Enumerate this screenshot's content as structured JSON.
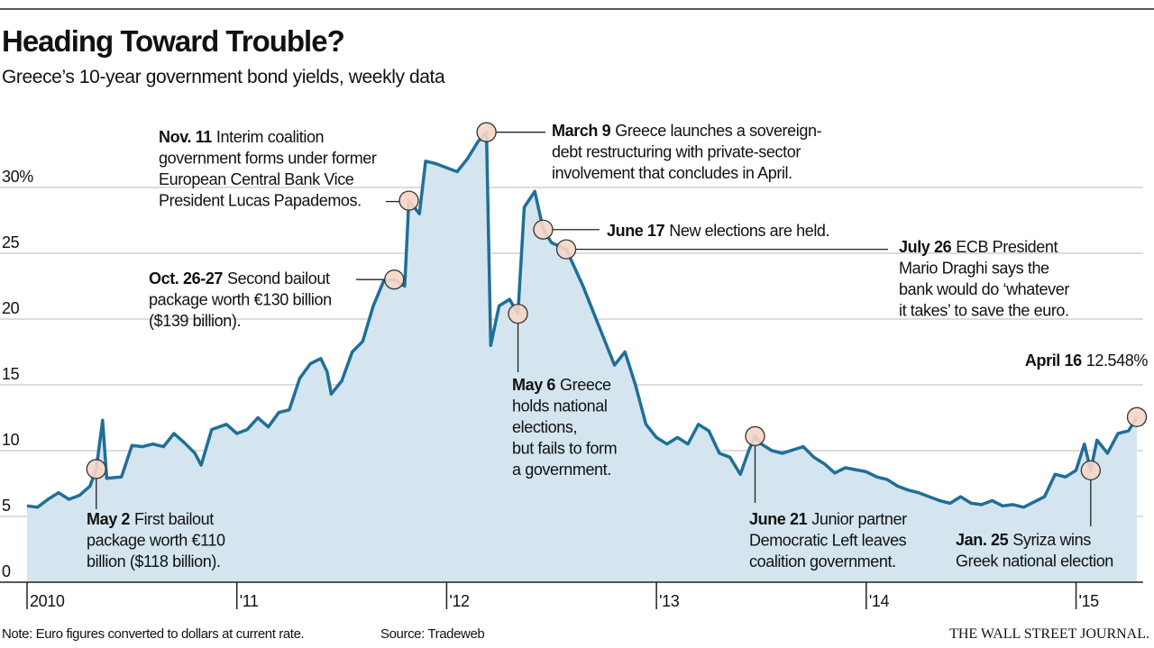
{
  "chart_data": {
    "type": "area-line",
    "title": "Heading Toward Trouble?",
    "subtitle": "Greece’s 10-year government bond yields, weekly data",
    "note": "Note: Euro figures converted to dollars at current rate.",
    "source": "Source: Tradeweb",
    "brand": "THE WALL STREET JOURNAL.",
    "color": "#1f6f98",
    "fill": "#d4e5ef",
    "grid": true,
    "xlim": [
      2010,
      2015.32
    ],
    "ylim": [
      0,
      35
    ],
    "xticks": [
      {
        "value": 2010,
        "label": "2010"
      },
      {
        "value": 2011,
        "label": "'11"
      },
      {
        "value": 2012,
        "label": "'12"
      },
      {
        "value": 2013,
        "label": "'13"
      },
      {
        "value": 2014,
        "label": "'14"
      },
      {
        "value": 2015,
        "label": "'15"
      }
    ],
    "yticks": [
      0,
      5,
      10,
      15,
      20,
      25,
      {
        "value": 30,
        "label": "30%"
      }
    ],
    "x": [
      2010.0,
      2010.05,
      2010.1,
      2010.15,
      2010.2,
      2010.25,
      2010.3,
      2010.33,
      2010.36,
      2010.38,
      2010.45,
      2010.5,
      2010.55,
      2010.6,
      2010.65,
      2010.7,
      2010.75,
      2010.8,
      2010.83,
      2010.88,
      2010.95,
      2011.0,
      2011.05,
      2011.1,
      2011.15,
      2011.2,
      2011.25,
      2011.3,
      2011.35,
      2011.4,
      2011.43,
      2011.45,
      2011.5,
      2011.55,
      2011.6,
      2011.65,
      2011.7,
      2011.75,
      2011.8,
      2011.82,
      2011.87,
      2011.9,
      2011.95,
      2012.0,
      2012.05,
      2012.1,
      2012.15,
      2012.19,
      2012.21,
      2012.25,
      2012.3,
      2012.34,
      2012.37,
      2012.42,
      2012.46,
      2012.5,
      2012.57,
      2012.65,
      2012.7,
      2012.75,
      2012.8,
      2012.85,
      2012.9,
      2012.95,
      2013.0,
      2013.05,
      2013.1,
      2013.15,
      2013.2,
      2013.25,
      2013.3,
      2013.35,
      2013.4,
      2013.44,
      2013.47,
      2013.5,
      2013.55,
      2013.6,
      2013.7,
      2013.75,
      2013.8,
      2013.85,
      2013.9,
      2014.0,
      2014.05,
      2014.1,
      2014.15,
      2014.2,
      2014.25,
      2014.3,
      2014.35,
      2014.4,
      2014.45,
      2014.5,
      2014.55,
      2014.6,
      2014.65,
      2014.7,
      2014.75,
      2014.8,
      2014.85,
      2014.9,
      2014.95,
      2015.0,
      2015.04,
      2015.07,
      2015.1,
      2015.15,
      2015.2,
      2015.25,
      2015.29
    ],
    "values": [
      5.8,
      5.7,
      6.3,
      6.8,
      6.3,
      6.6,
      7.3,
      8.6,
      12.3,
      7.9,
      8.0,
      10.4,
      10.3,
      10.5,
      10.3,
      11.3,
      10.6,
      9.8,
      8.9,
      11.6,
      12.0,
      11.3,
      11.6,
      12.5,
      11.8,
      12.9,
      13.1,
      15.5,
      16.6,
      17.0,
      16.0,
      14.3,
      15.3,
      17.5,
      18.3,
      21.0,
      22.9,
      23.0,
      22.5,
      29.0,
      28.0,
      32.0,
      31.8,
      31.5,
      31.2,
      32.2,
      33.5,
      34.2,
      18.0,
      21.0,
      21.5,
      20.4,
      28.5,
      29.7,
      26.8,
      25.8,
      25.3,
      22.5,
      20.5,
      18.5,
      16.5,
      17.5,
      15.0,
      12.0,
      11.0,
      10.5,
      11.0,
      10.5,
      12.0,
      11.5,
      9.8,
      9.5,
      8.2,
      10.0,
      11.1,
      10.5,
      10.0,
      9.8,
      10.3,
      9.5,
      9.0,
      8.3,
      8.7,
      8.4,
      8.0,
      7.8,
      7.3,
      7.0,
      6.8,
      6.5,
      6.2,
      6.0,
      6.5,
      6.0,
      5.9,
      6.2,
      5.8,
      5.9,
      5.7,
      6.1,
      6.5,
      8.2,
      8.0,
      8.5,
      10.5,
      8.5,
      10.8,
      9.8,
      11.3,
      11.5,
      12.548
    ],
    "annotations": [
      {
        "label": "May 2",
        "lines": [
          "First bailout",
          "package worth €110",
          "billion ($118 billion)."
        ],
        "x": 2010.33,
        "y": 8.6
      },
      {
        "label": "Oct. 26-27",
        "lines": [
          "Second bailout",
          "package worth €130 billion",
          "($139 billion)."
        ],
        "x": 2011.75,
        "y": 23.0
      },
      {
        "label": "Nov. 11",
        "lines": [
          "Interim coalition",
          "government forms under former",
          "European Central Bank Vice",
          "President Lucas Papademos."
        ],
        "x": 2011.82,
        "y": 29.0
      },
      {
        "label": "March 9",
        "lines": [
          "Greece launches a sovereign-",
          "debt restructuring with private-sector",
          "involvement that concludes in April."
        ],
        "x": 2012.19,
        "y": 34.2
      },
      {
        "label": "May 6",
        "lines": [
          "Greece",
          "holds national",
          "elections,",
          "but fails to form",
          "a government."
        ],
        "x": 2012.34,
        "y": 20.4
      },
      {
        "label": "June 17",
        "lines": [
          "New elections are held."
        ],
        "x": 2012.46,
        "y": 26.8
      },
      {
        "label": "July 26",
        "lines": [
          "ECB President",
          "Mario Draghi says the",
          "bank would do ‘whatever",
          "it takes’ to save the euro."
        ],
        "x": 2012.57,
        "y": 25.3
      },
      {
        "label": "June 21",
        "lines": [
          "Junior partner",
          "Democratic Left leaves",
          "coalition government."
        ],
        "x": 2013.47,
        "y": 11.1
      },
      {
        "label": "Jan. 25",
        "lines": [
          "Syriza wins",
          "Greek national election"
        ],
        "x": 2015.07,
        "y": 8.5
      },
      {
        "label": "April 16",
        "lines": [
          "12.548%"
        ],
        "x": 2015.29,
        "y": 12.548
      }
    ]
  }
}
